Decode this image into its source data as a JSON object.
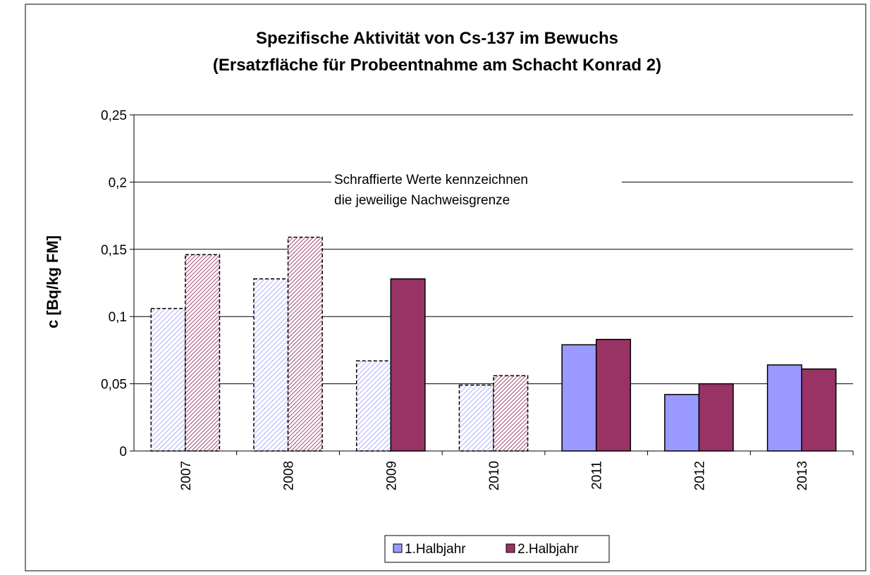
{
  "chart_data": {
    "type": "bar",
    "title": [
      "Spezifische Aktivität von Cs-137 im Bewuchs",
      "(Ersatzfläche für Probeentnahme am Schacht Konrad 2)"
    ],
    "y_label": "c [Bq/kg FM]",
    "annotation": [
      "Schraffierte Werte kennzeichnen",
      "die jeweilige Nachweisgrenze"
    ],
    "categories": [
      "2007",
      "2008",
      "2009",
      "2010",
      "2011",
      "2012",
      "2013"
    ],
    "series": [
      {
        "name": "1.Halbjahr",
        "color": "#9999ff",
        "values": [
          0.106,
          0.128,
          0.067,
          0.049,
          0.079,
          0.042,
          0.064
        ],
        "hatched": [
          true,
          true,
          true,
          true,
          false,
          false,
          false
        ]
      },
      {
        "name": "2.Halbjahr",
        "color": "#993366",
        "values": [
          0.146,
          0.159,
          0.128,
          0.056,
          0.083,
          0.05,
          0.061
        ],
        "hatched": [
          true,
          true,
          false,
          true,
          false,
          false,
          false
        ]
      }
    ],
    "ylim": [
      0,
      0.25
    ],
    "yticks": [
      0,
      {
        "value": 0.05,
        "label": "0,05"
      },
      {
        "value": 0.1,
        "label": "0,1"
      },
      {
        "value": 0.15,
        "label": "0,15"
      },
      {
        "value": 0.2,
        "label": "0,2"
      },
      {
        "value": 0.25,
        "label": "0,25"
      }
    ],
    "grid": true,
    "legend": "bottom"
  }
}
